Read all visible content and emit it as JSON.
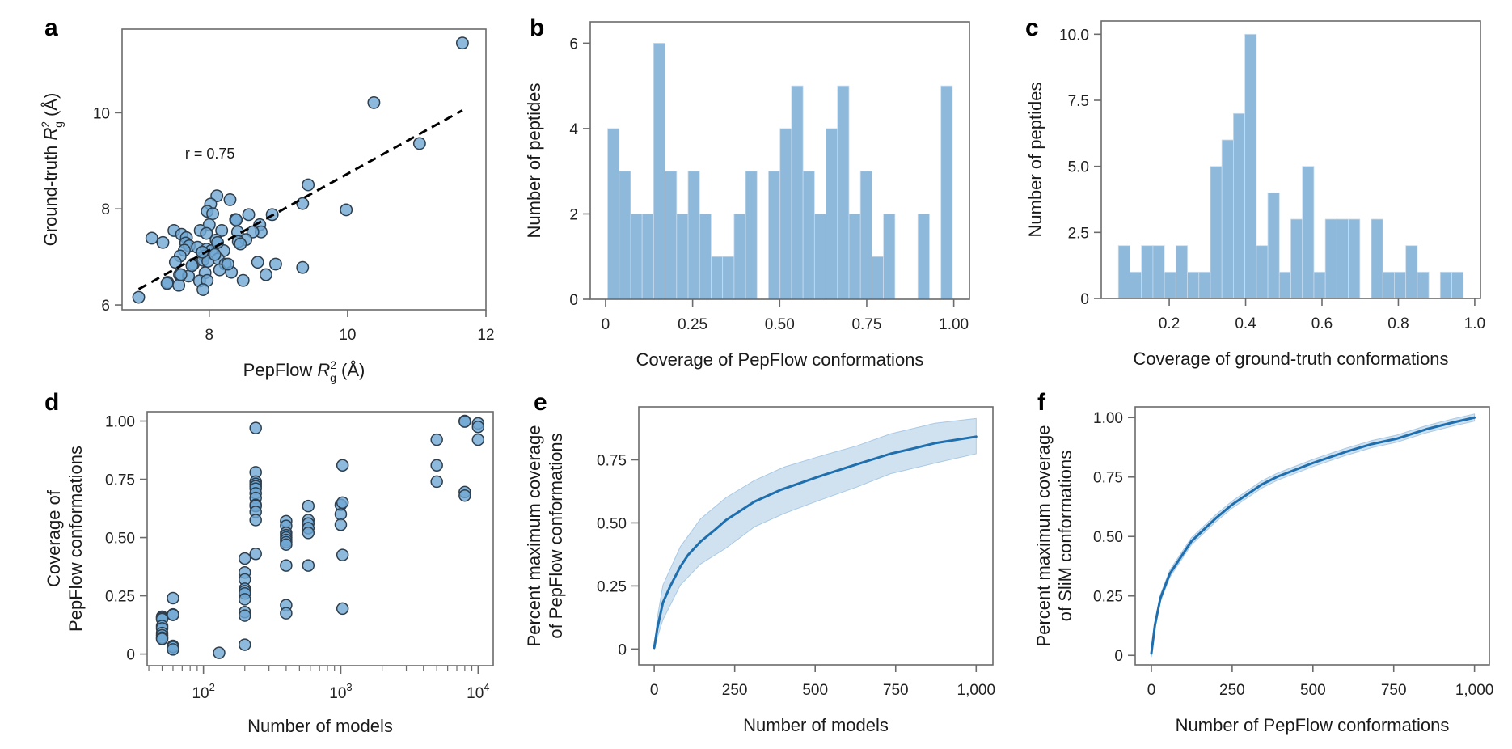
{
  "colors": {
    "bar": "#8fb9da",
    "bar_edge": "#c9dcee",
    "point_fill": "#6fa7d3",
    "point_edge": "#2f3e4c",
    "line": "#1f6fae",
    "band": "#bcd5ea",
    "axis": "#6b6b6b",
    "fit_line": "#000000"
  },
  "chart_data": [
    {
      "id": "a",
      "panel_label": "a",
      "type": "scatter",
      "xlabel": "PepFlow R_g^2 (Å)",
      "xlabel_parts": {
        "pre": "PepFlow ",
        "var": "R",
        "sub": "g",
        "sup": "2",
        "post": " (Å)"
      },
      "ylabel": "Ground-truth R_g^2 (Å)",
      "ylabel_parts": {
        "pre": "Ground-truth ",
        "var": "R",
        "sub": "g",
        "sup": "2",
        "post": " (Å)"
      },
      "xlim": [
        6.74,
        12
      ],
      "ylim": [
        5.9,
        11.74
      ],
      "xticks": [
        8,
        10,
        12
      ],
      "xtick_labels": [
        "8",
        "10",
        "12"
      ],
      "yticks": [
        6,
        8,
        10
      ],
      "ytick_labels": [
        "6",
        "8",
        "10"
      ],
      "annotation": "r = 0.75",
      "annotation_at": [
        7.65,
        9.05
      ],
      "fit_line": {
        "x": [
          6.98,
          11.66
        ],
        "y": [
          6.33,
          10.05
        ],
        "style": "dashed"
      },
      "points": [
        [
          11.66,
          11.45
        ],
        [
          10.38,
          10.21
        ],
        [
          11.04,
          9.36
        ],
        [
          9.43,
          8.5
        ],
        [
          9.35,
          8.11
        ],
        [
          9.98,
          7.98
        ],
        [
          9.35,
          6.78
        ],
        [
          8.96,
          6.85
        ],
        [
          8.82,
          6.63
        ],
        [
          8.7,
          6.89
        ],
        [
          8.91,
          7.88
        ],
        [
          8.57,
          7.88
        ],
        [
          8.3,
          8.19
        ],
        [
          8.11,
          8.27
        ],
        [
          8.02,
          8.1
        ],
        [
          7.97,
          7.95
        ],
        [
          8.05,
          7.9
        ],
        [
          8.0,
          7.67
        ],
        [
          8.38,
          7.78
        ],
        [
          8.39,
          7.77
        ],
        [
          8.73,
          7.67
        ],
        [
          8.75,
          7.52
        ],
        [
          8.63,
          7.52
        ],
        [
          8.41,
          7.52
        ],
        [
          8.18,
          7.55
        ],
        [
          7.87,
          7.55
        ],
        [
          7.96,
          7.49
        ],
        [
          7.49,
          7.55
        ],
        [
          7.6,
          7.47
        ],
        [
          7.67,
          7.4
        ],
        [
          7.17,
          7.39
        ],
        [
          7.33,
          7.3
        ],
        [
          8.1,
          7.35
        ],
        [
          8.53,
          7.36
        ],
        [
          8.42,
          7.32
        ],
        [
          8.45,
          7.27
        ],
        [
          7.66,
          7.29
        ],
        [
          7.71,
          7.23
        ],
        [
          7.83,
          7.2
        ],
        [
          7.96,
          7.16
        ],
        [
          8.03,
          7.13
        ],
        [
          8.21,
          7.13
        ],
        [
          7.64,
          7.14
        ],
        [
          7.58,
          7.02
        ],
        [
          7.93,
          7.02
        ],
        [
          8.13,
          6.96
        ],
        [
          7.51,
          6.89
        ],
        [
          7.77,
          6.85
        ],
        [
          7.91,
          6.93
        ],
        [
          7.98,
          6.91
        ],
        [
          8.23,
          6.85
        ],
        [
          8.15,
          6.73
        ],
        [
          8.32,
          6.68
        ],
        [
          7.94,
          6.67
        ],
        [
          7.57,
          6.63
        ],
        [
          7.7,
          6.6
        ],
        [
          7.86,
          6.5
        ],
        [
          7.97,
          6.51
        ],
        [
          8.49,
          6.51
        ],
        [
          7.4,
          6.47
        ],
        [
          7.56,
          6.41
        ],
        [
          7.91,
          6.32
        ],
        [
          6.98,
          6.16
        ],
        [
          8.27,
          6.85
        ],
        [
          7.39,
          6.45
        ],
        [
          7.59,
          6.63
        ],
        [
          8.08,
          7.05
        ],
        [
          7.9,
          7.1
        ],
        [
          8.12,
          7.3
        ],
        [
          7.75,
          6.82
        ]
      ]
    },
    {
      "id": "b",
      "panel_label": "b",
      "type": "bar",
      "subtype": "histogram",
      "xlabel": "Coverage of PepFlow conformations",
      "ylabel": "Number of peptides",
      "xlim": [
        -0.044,
        1.045
      ],
      "ylim": [
        0,
        6.5
      ],
      "xticks": [
        0,
        0.25,
        0.5,
        0.75,
        1.0
      ],
      "xtick_labels": [
        "0",
        "0.25",
        "0.50",
        "0.75",
        "1.00"
      ],
      "yticks": [
        0,
        2,
        4,
        6
      ],
      "ytick_labels": [
        "0",
        "2",
        "4",
        "6"
      ],
      "bin_start": 0.006,
      "bin_width": 0.033,
      "values": [
        4,
        3,
        2,
        2,
        6,
        3,
        2,
        3,
        2,
        1,
        1,
        2,
        3,
        0,
        3,
        4,
        5,
        3,
        2,
        4,
        5,
        2,
        3,
        1,
        2,
        0,
        0,
        2,
        0,
        5
      ]
    },
    {
      "id": "c",
      "panel_label": "c",
      "type": "bar",
      "subtype": "histogram",
      "xlabel": "Coverage of ground-truth conformations",
      "ylabel": "Number of peptides",
      "xlim": [
        0.022,
        1.015
      ],
      "ylim": [
        0,
        10.5
      ],
      "xticks": [
        0.2,
        0.4,
        0.6,
        0.8,
        1.0
      ],
      "xtick_labels": [
        "0.2",
        "0.4",
        "0.6",
        "0.8",
        "1.0"
      ],
      "yticks": [
        0,
        2.5,
        5,
        7.5,
        10
      ],
      "ytick_labels": [
        "0",
        "2.5",
        "5.0",
        "7.5",
        "10.0"
      ],
      "bin_start": 0.067,
      "bin_width": 0.0301,
      "values": [
        2,
        1,
        2,
        2,
        1,
        2,
        1,
        1,
        5,
        6,
        7,
        10,
        2,
        4,
        1,
        3,
        5,
        1,
        3,
        3,
        3,
        0,
        3,
        1,
        1,
        2,
        1,
        0,
        1,
        1
      ]
    },
    {
      "id": "d",
      "panel_label": "d",
      "type": "scatter",
      "xscale": "log",
      "xlabel": "Number of models",
      "ylabel_lines": [
        "Coverage of",
        "PepFlow conformations"
      ],
      "ylabel": "Coverage of PepFlow conformations",
      "xlim_log10": [
        1.59,
        4.11
      ],
      "ylim": [
        -0.05,
        1.04
      ],
      "xticks_log10": [
        2,
        3,
        4
      ],
      "xtick_labels": [
        {
          "base": "10",
          "exp": "2"
        },
        {
          "base": "10",
          "exp": "3"
        },
        {
          "base": "10",
          "exp": "4"
        }
      ],
      "yticks": [
        0,
        0.25,
        0.5,
        0.75,
        1.0
      ],
      "ytick_labels": [
        "0",
        "0.25",
        "0.50",
        "0.75",
        "1.00"
      ],
      "points": [
        [
          50,
          0.16
        ],
        [
          50,
          0.155
        ],
        [
          50,
          0.15
        ],
        [
          50,
          0.12
        ],
        [
          50,
          0.11
        ],
        [
          50,
          0.09
        ],
        [
          50,
          0.08
        ],
        [
          50,
          0.07
        ],
        [
          50,
          0.065
        ],
        [
          60,
          0.24
        ],
        [
          60,
          0.17
        ],
        [
          60,
          0.168
        ],
        [
          60,
          0.035
        ],
        [
          60,
          0.03
        ],
        [
          60,
          0.02
        ],
        [
          130,
          0.005
        ],
        [
          200,
          0.41
        ],
        [
          200,
          0.35
        ],
        [
          200,
          0.32
        ],
        [
          200,
          0.28
        ],
        [
          200,
          0.27
        ],
        [
          200,
          0.26
        ],
        [
          200,
          0.235
        ],
        [
          200,
          0.18
        ],
        [
          200,
          0.165
        ],
        [
          200,
          0.04
        ],
        [
          240,
          0.97
        ],
        [
          240,
          0.78
        ],
        [
          240,
          0.74
        ],
        [
          240,
          0.73
        ],
        [
          240,
          0.72
        ],
        [
          240,
          0.71
        ],
        [
          240,
          0.69
        ],
        [
          240,
          0.67
        ],
        [
          240,
          0.64
        ],
        [
          240,
          0.635
        ],
        [
          240,
          0.61
        ],
        [
          240,
          0.575
        ],
        [
          240,
          0.43
        ],
        [
          400,
          0.57
        ],
        [
          400,
          0.55
        ],
        [
          400,
          0.52
        ],
        [
          400,
          0.51
        ],
        [
          400,
          0.5
        ],
        [
          400,
          0.49
        ],
        [
          400,
          0.48
        ],
        [
          400,
          0.47
        ],
        [
          400,
          0.38
        ],
        [
          400,
          0.21
        ],
        [
          400,
          0.175
        ],
        [
          580,
          0.635
        ],
        [
          580,
          0.575
        ],
        [
          580,
          0.56
        ],
        [
          580,
          0.54
        ],
        [
          580,
          0.52
        ],
        [
          580,
          0.38
        ],
        [
          1000,
          0.64
        ],
        [
          1000,
          0.6
        ],
        [
          1000,
          0.555
        ],
        [
          1030,
          0.81
        ],
        [
          1030,
          0.65
        ],
        [
          1030,
          0.425
        ],
        [
          1030,
          0.195
        ],
        [
          5000,
          0.92
        ],
        [
          5000,
          0.81
        ],
        [
          5000,
          0.74
        ],
        [
          8000,
          1.0
        ],
        [
          8000,
          0.998
        ],
        [
          8000,
          0.695
        ],
        [
          8000,
          0.68
        ],
        [
          10000,
          0.99
        ],
        [
          10000,
          0.975
        ],
        [
          10000,
          0.92
        ]
      ]
    },
    {
      "id": "e",
      "panel_label": "e",
      "type": "line",
      "xlabel": "Number of models",
      "ylabel_lines": [
        "Percent maximum coverage",
        "of PepFlow conformations"
      ],
      "ylabel": "Percent maximum coverage of PepFlow conformations",
      "xlim": [
        -48,
        1052
      ],
      "ylim": [
        -0.063,
        0.96
      ],
      "xticks": [
        0,
        250,
        500,
        750,
        1000
      ],
      "xtick_labels": [
        "0",
        "250",
        "500",
        "750",
        "1,000"
      ],
      "yticks": [
        0,
        0.25,
        0.5,
        0.75
      ],
      "ytick_labels": [
        "0",
        "0.25",
        "0.50",
        "0.75"
      ],
      "series": [
        {
          "name": "mean",
          "x": [
            0,
            10,
            27,
            49,
            81,
            106,
            144,
            190,
            223,
            311,
            395,
            512,
            629,
            734,
            805,
            872,
            1000
          ],
          "y": [
            0.005,
            0.084,
            0.184,
            0.247,
            0.326,
            0.374,
            0.426,
            0.474,
            0.511,
            0.584,
            0.632,
            0.684,
            0.732,
            0.774,
            0.795,
            0.816,
            0.842
          ],
          "band_x": [
            0,
            10,
            27,
            81,
            144,
            223,
            311,
            403,
            512,
            629,
            734,
            872,
            1000
          ],
          "band_upper": [
            0.005,
            0.126,
            0.253,
            0.405,
            0.516,
            0.6,
            0.668,
            0.721,
            0.763,
            0.805,
            0.853,
            0.895,
            0.914
          ],
          "band_lower": [
            -0.005,
            0.047,
            0.116,
            0.253,
            0.337,
            0.4,
            0.484,
            0.537,
            0.589,
            0.642,
            0.695,
            0.737,
            0.774
          ]
        }
      ]
    },
    {
      "id": "f",
      "panel_label": "f",
      "type": "line",
      "xlabel": "Number of PepFlow conformations",
      "ylabel_lines": [
        "Percent maximum coverage",
        "of SliM conformations"
      ],
      "ylabel": "Percent maximum coverage of SliM conformations",
      "xlim": [
        -50,
        1046
      ],
      "ylim": [
        -0.04,
        1.045
      ],
      "xticks": [
        0,
        250,
        500,
        750,
        1000
      ],
      "xtick_labels": [
        "0",
        "250",
        "500",
        "750",
        "1,000"
      ],
      "yticks": [
        0,
        0.25,
        0.5,
        0.75,
        1.0
      ],
      "ytick_labels": [
        "0",
        "0.25",
        "0.50",
        "0.75",
        "1.00"
      ],
      "series": [
        {
          "name": "mean",
          "x": [
            0,
            11,
            28,
            57,
            90,
            124,
            199,
            249,
            341,
            391,
            500,
            600,
            684,
            759,
            851,
            935,
            1000
          ],
          "y": [
            0.008,
            0.127,
            0.241,
            0.343,
            0.411,
            0.48,
            0.576,
            0.633,
            0.718,
            0.752,
            0.809,
            0.855,
            0.889,
            0.911,
            0.951,
            0.98,
            1.0
          ],
          "band_halfwidth": 0.015
        }
      ]
    }
  ]
}
